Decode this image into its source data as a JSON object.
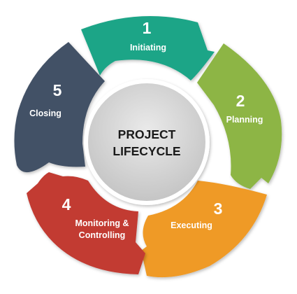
{
  "center": {
    "line1": "PROJECT",
    "line2": "LIFECYCLE"
  },
  "phases": [
    {
      "number": "1",
      "label": "Initiating",
      "color": "#1fa587"
    },
    {
      "number": "2",
      "label": "Planning",
      "color": "#8db545"
    },
    {
      "number": "3",
      "label": "Executing",
      "color": "#ef9a26"
    },
    {
      "number": "4",
      "label_line1": "Monitoring &",
      "label_line2": "Controlling",
      "color": "#c23a33"
    },
    {
      "number": "5",
      "label": "Closing",
      "color": "#435166"
    }
  ]
}
